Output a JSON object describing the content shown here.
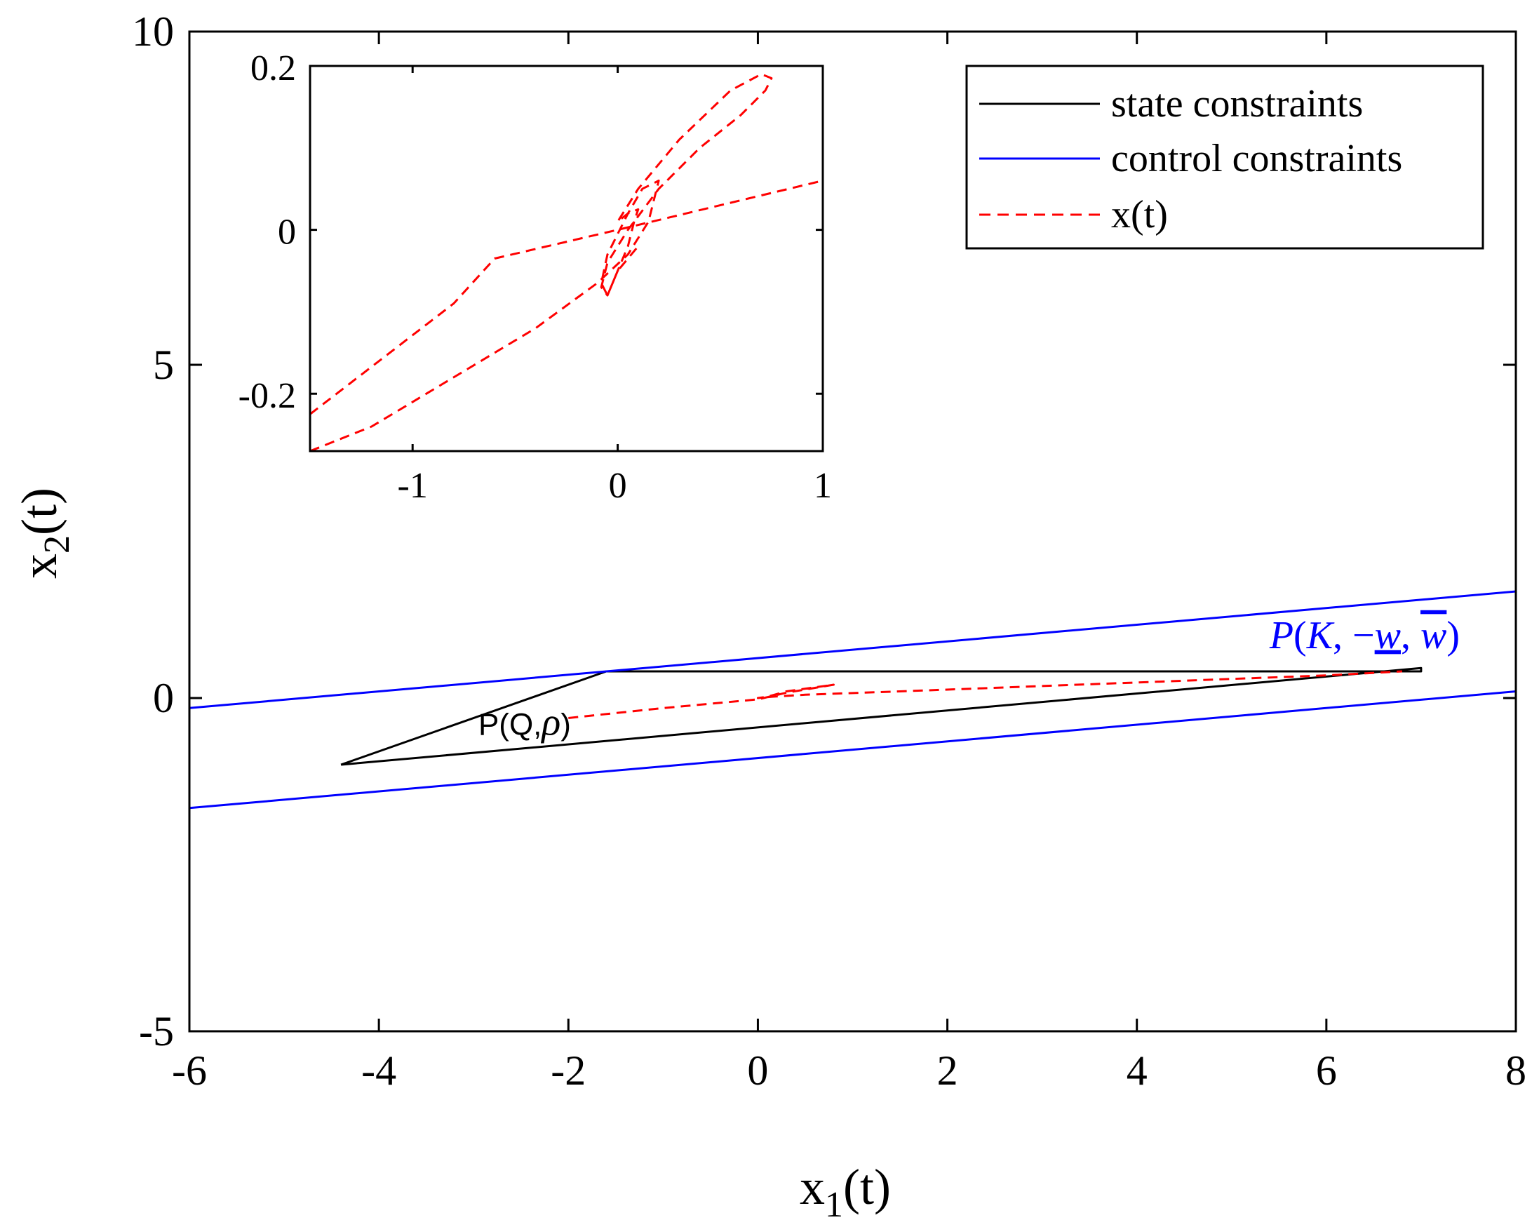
{
  "chart_data": [
    {
      "type": "line",
      "name": "main",
      "xlabel": "x",
      "xlabel_sub": "1",
      "xlabel_suffix": "(t)",
      "ylabel": "x",
      "ylabel_sub": "2",
      "ylabel_suffix": "(t)",
      "xlim": [
        -6,
        8
      ],
      "ylim": [
        -5,
        10
      ],
      "xticks": [
        -6,
        -4,
        -2,
        0,
        2,
        4,
        6,
        8
      ],
      "xtick_labels": [
        "-6",
        "-4",
        "-2",
        "0",
        "2",
        "4",
        "6",
        "8"
      ],
      "yticks": [
        -5,
        0,
        5,
        10
      ],
      "ytick_labels": [
        "-5",
        "0",
        "5",
        "10"
      ],
      "grid": false,
      "legend": {
        "location": "top-right",
        "entries": [
          {
            "label": "state constraints",
            "color": "#000000",
            "style": "solid"
          },
          {
            "label": "control constraints",
            "color": "#0000ff",
            "style": "solid"
          },
          {
            "label": "x(t)",
            "color": "#ff0000",
            "style": "dashed"
          }
        ]
      },
      "series": [
        {
          "name": "state constraints",
          "color": "#000000",
          "style": "solid",
          "x": [
            -4.4,
            -1.6,
            7.0,
            7.0,
            -4.4
          ],
          "y": [
            -1.0,
            0.4,
            0.4,
            0.45,
            -1.0
          ]
        },
        {
          "name": "control constraints (upper)",
          "color": "#0000ff",
          "style": "solid",
          "x": [
            -6,
            8
          ],
          "y": [
            -0.15,
            1.6
          ]
        },
        {
          "name": "control constraints (lower)",
          "color": "#0000ff",
          "style": "solid",
          "x": [
            -6,
            8
          ],
          "y": [
            -1.65,
            0.1
          ]
        },
        {
          "name": "x(t)",
          "color": "#ff0000",
          "style": "dashed",
          "x": [
            -2.0,
            -1.0,
            0.0,
            0.3,
            0.8,
            0.3,
            0.1,
            0.0,
            0.15,
            0.5,
            1.5,
            3.0,
            4.5,
            6.0,
            6.8
          ],
          "y": [
            -0.3,
            -0.15,
            -0.02,
            0.08,
            0.2,
            0.1,
            0.02,
            0.0,
            0.02,
            0.05,
            0.1,
            0.18,
            0.26,
            0.34,
            0.4
          ]
        }
      ],
      "annotations": [
        {
          "text": "P(Q,",
          "math": "ρ",
          "close": ")",
          "x": -2.95,
          "y": -0.55,
          "color": "#000000"
        },
        {
          "text": "P(K, −w, w)",
          "math_parts": [
            "P",
            "(",
            "K",
            ", −",
            "w",
            ", ",
            "w",
            ")"
          ],
          "x": 5.4,
          "y": 0.75,
          "color": "#0000ff"
        }
      ]
    },
    {
      "type": "line",
      "name": "inset",
      "xlim": [
        -1.5,
        1
      ],
      "ylim": [
        -0.27,
        0.2
      ],
      "xticks": [
        -1,
        0,
        1
      ],
      "xtick_labels": [
        "-1",
        "0",
        "1"
      ],
      "yticks": [
        -0.2,
        0,
        0.2
      ],
      "ytick_labels": [
        "-0.2",
        "0",
        "0.2"
      ],
      "grid": false,
      "series": [
        {
          "name": "x(t)",
          "color": "#ff0000",
          "style": "dashed",
          "x": [
            -1.5,
            -0.8,
            -0.6,
            0.0,
            0.25,
            1.0
          ],
          "y": [
            -0.225,
            -0.09,
            -0.035,
            0.0,
            0.015,
            0.06
          ]
        },
        {
          "name": "x(t) loop",
          "color": "#ff0000",
          "style": "dashed",
          "x": [
            -1.5,
            -1.2,
            -0.8,
            -0.4,
            -0.1,
            0.05,
            0.15,
            0.2,
            0.12,
            0.05,
            -0.05,
            -0.08,
            -0.05,
            0.0,
            0.05,
            0.08,
            0.1,
            0.05,
            0.0,
            0.1,
            0.3,
            0.55,
            0.7,
            0.75,
            0.72,
            0.6,
            0.4,
            0.2,
            0.05,
            -0.05,
            -0.08,
            -0.05,
            0.0,
            0.1
          ],
          "y": [
            -0.27,
            -0.24,
            -0.18,
            -0.12,
            -0.065,
            -0.03,
            0.01,
            0.06,
            0.05,
            0.02,
            -0.03,
            -0.065,
            -0.08,
            -0.05,
            -0.02,
            0.01,
            0.025,
            0.02,
            0.01,
            0.05,
            0.11,
            0.17,
            0.19,
            0.185,
            0.17,
            0.14,
            0.1,
            0.05,
            0.0,
            -0.04,
            -0.07,
            -0.08,
            -0.05,
            -0.02
          ]
        }
      ]
    }
  ]
}
